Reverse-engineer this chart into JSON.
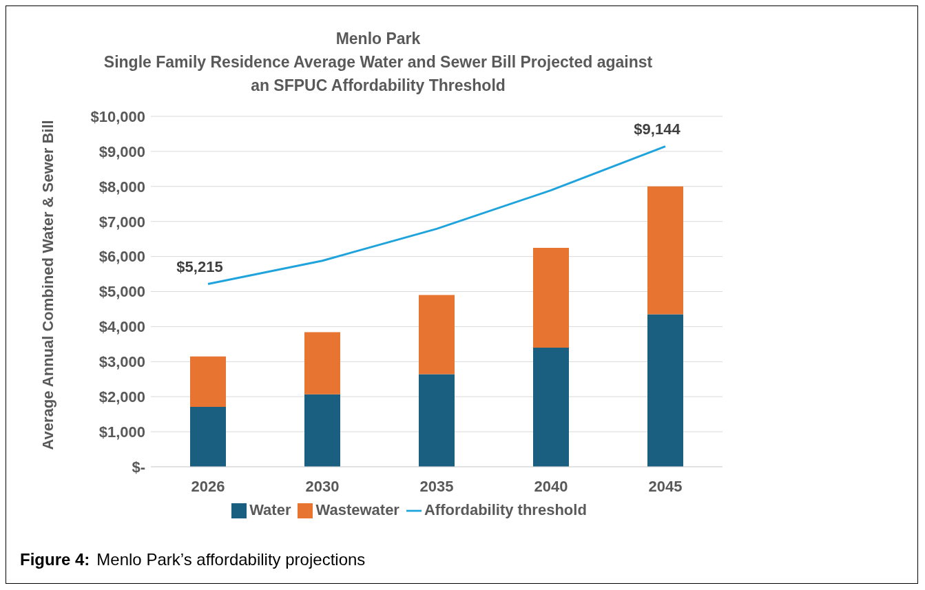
{
  "chart_data": {
    "type": "bar",
    "title": "Menlo Park",
    "subtitle": "Single Family Residence Average Water and Sewer Bill Projected against an SFPUC Affordability Threshold",
    "ylabel": "Average Annual Combined Water & Sewer Bill",
    "categories": [
      "2026",
      "2030",
      "2035",
      "2040",
      "2045"
    ],
    "series": [
      {
        "name": "Water",
        "color": "#1a5f80",
        "values": [
          1710,
          2070,
          2640,
          3400,
          4350
        ]
      },
      {
        "name": "Wastewater",
        "color": "#e87431",
        "values": [
          1440,
          1770,
          2260,
          2850,
          3650
        ]
      },
      {
        "name": "Affordability threshold",
        "type": "line",
        "color": "#1fa3dc",
        "values": [
          5215,
          5880,
          6790,
          7890,
          9144
        ],
        "value_labels": [
          "$5,215",
          null,
          null,
          null,
          "$9,144"
        ]
      }
    ],
    "stacked": true,
    "ylim": [
      0,
      10000
    ],
    "yticks": [
      {
        "value": 0,
        "label": "$-"
      },
      {
        "value": 1000,
        "label": "$1,000"
      },
      {
        "value": 2000,
        "label": "$2,000"
      },
      {
        "value": 3000,
        "label": "$3,000"
      },
      {
        "value": 4000,
        "label": "$4,000"
      },
      {
        "value": 5000,
        "label": "$5,000"
      },
      {
        "value": 6000,
        "label": "$6,000"
      },
      {
        "value": 7000,
        "label": "$7,000"
      },
      {
        "value": 8000,
        "label": "$8,000"
      },
      {
        "value": 9000,
        "label": "$9,000"
      },
      {
        "value": 10000,
        "label": "$10,000"
      }
    ],
    "grid": "y",
    "legend": "bottom",
    "marker": "none",
    "line_style": "solid",
    "annotations": [
      "Figure 4:",
      "Menlo Park’s affordability projections"
    ]
  }
}
